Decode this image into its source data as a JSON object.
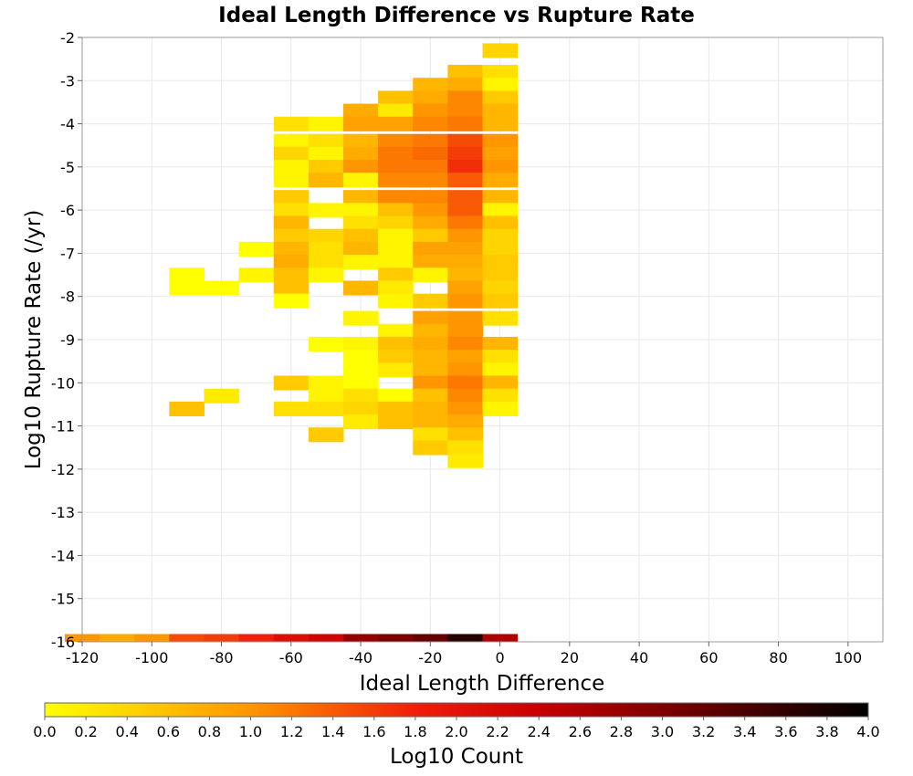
{
  "chart_data": {
    "type": "heatmap",
    "title": "Ideal Length Difference vs Rupture Rate",
    "xlabel": "Ideal Length Difference",
    "ylabel": "Log10 Rupture Rate (/yr)",
    "xlim": [
      -120,
      110
    ],
    "ylim": [
      -16,
      -2
    ],
    "x_ticks": [
      -120,
      -100,
      -80,
      -60,
      -40,
      -20,
      0,
      20,
      40,
      60,
      80,
      100
    ],
    "y_ticks": [
      -2,
      -3,
      -4,
      -5,
      -6,
      -7,
      -8,
      -9,
      -10,
      -11,
      -12,
      -13,
      -14,
      -15,
      -16
    ],
    "grid": true,
    "x_bin_width": 10,
    "y_bin_height": 0.33,
    "colorbar": {
      "label": "Log10 Count",
      "min": 0.0,
      "max": 4.0,
      "ticks": [
        "0.0",
        "0.2",
        "0.4",
        "0.6",
        "0.8",
        "1.0",
        "1.2",
        "1.4",
        "1.6",
        "1.8",
        "2.0",
        "2.2",
        "2.4",
        "2.6",
        "2.8",
        "3.0",
        "3.2",
        "3.4",
        "3.6",
        "3.8",
        "4.0"
      ]
    },
    "columns": [
      {
        "x": -90,
        "cells": [
          [
            -7.5,
            0.0
          ],
          [
            -7.8,
            0.0
          ],
          [
            -10.6,
            0.6
          ]
        ]
      },
      {
        "x": -80,
        "cells": [
          [
            -7.8,
            0.0
          ],
          [
            -10.3,
            0.2
          ]
        ]
      },
      {
        "x": -70,
        "cells": [
          [
            -6.9,
            0.0
          ],
          [
            -7.5,
            0.1
          ]
        ]
      },
      {
        "x": -60,
        "cells": [
          [
            -4.0,
            0.3
          ],
          [
            -4.4,
            0.1
          ],
          [
            -4.7,
            0.4
          ],
          [
            -5.0,
            0.1
          ],
          [
            -5.3,
            0.1
          ],
          [
            -5.7,
            0.5
          ],
          [
            -6.0,
            0.3
          ],
          [
            -6.3,
            0.7
          ],
          [
            -6.6,
            0.5
          ],
          [
            -6.9,
            0.7
          ],
          [
            -7.2,
            0.8
          ],
          [
            -7.5,
            0.6
          ],
          [
            -7.8,
            0.6
          ],
          [
            -8.1,
            0.0
          ],
          [
            -10.0,
            0.5
          ],
          [
            -10.6,
            0.3
          ]
        ]
      },
      {
        "x": -50,
        "cells": [
          [
            -4.0,
            0.1
          ],
          [
            -4.4,
            0.3
          ],
          [
            -4.7,
            0.1
          ],
          [
            -5.0,
            0.5
          ],
          [
            -5.3,
            0.7
          ],
          [
            -6.0,
            0.1
          ],
          [
            -6.6,
            0.4
          ],
          [
            -6.9,
            0.3
          ],
          [
            -7.2,
            0.3
          ],
          [
            -7.5,
            0.1
          ],
          [
            -9.1,
            0.0
          ],
          [
            -10.0,
            0.1
          ],
          [
            -10.3,
            0.1
          ],
          [
            -10.6,
            0.3
          ],
          [
            -11.2,
            0.5
          ]
        ]
      },
      {
        "x": -40,
        "cells": [
          [
            -3.7,
            0.8
          ],
          [
            -4.0,
            0.9
          ],
          [
            -4.4,
            0.7
          ],
          [
            -4.7,
            0.8
          ],
          [
            -5.0,
            1.0
          ],
          [
            -5.3,
            0.1
          ],
          [
            -5.7,
            0.7
          ],
          [
            -6.0,
            0.1
          ],
          [
            -6.3,
            0.3
          ],
          [
            -6.6,
            0.6
          ],
          [
            -6.9,
            0.7
          ],
          [
            -7.2,
            0.1
          ],
          [
            -7.8,
            0.7
          ],
          [
            -8.5,
            0.1
          ],
          [
            -9.1,
            0.1
          ],
          [
            -9.4,
            0.0
          ],
          [
            -9.7,
            0.0
          ],
          [
            -10.0,
            0.0
          ],
          [
            -10.3,
            0.3
          ],
          [
            -10.6,
            0.4
          ],
          [
            -10.9,
            0.2
          ]
        ]
      },
      {
        "x": -30,
        "cells": [
          [
            -3.4,
            0.6
          ],
          [
            -3.7,
            0.2
          ],
          [
            -4.0,
            0.9
          ],
          [
            -4.4,
            1.1
          ],
          [
            -4.7,
            1.2
          ],
          [
            -5.0,
            1.2
          ],
          [
            -5.3,
            1.1
          ],
          [
            -5.7,
            1.1
          ],
          [
            -6.0,
            0.6
          ],
          [
            -6.3,
            0.4
          ],
          [
            -6.6,
            0.1
          ],
          [
            -6.9,
            0.1
          ],
          [
            -7.2,
            0.1
          ],
          [
            -7.5,
            0.5
          ],
          [
            -7.8,
            0.2
          ],
          [
            -8.1,
            0.1
          ],
          [
            -8.8,
            0.1
          ],
          [
            -9.1,
            0.6
          ],
          [
            -9.4,
            0.5
          ],
          [
            -9.7,
            0.2
          ],
          [
            -10.3,
            0.0
          ],
          [
            -10.6,
            0.6
          ],
          [
            -10.9,
            0.6
          ]
        ]
      },
      {
        "x": -20,
        "cells": [
          [
            -3.1,
            0.7
          ],
          [
            -3.4,
            0.8
          ],
          [
            -3.7,
            1.0
          ],
          [
            -4.0,
            1.1
          ],
          [
            -4.4,
            1.2
          ],
          [
            -4.7,
            1.3
          ],
          [
            -5.0,
            1.2
          ],
          [
            -5.3,
            1.1
          ],
          [
            -5.7,
            1.1
          ],
          [
            -6.0,
            1.0
          ],
          [
            -6.3,
            0.8
          ],
          [
            -6.6,
            0.5
          ],
          [
            -6.9,
            0.9
          ],
          [
            -7.2,
            0.8
          ],
          [
            -7.5,
            0.1
          ],
          [
            -8.1,
            0.5
          ],
          [
            -8.5,
            0.9
          ],
          [
            -8.8,
            0.7
          ],
          [
            -9.1,
            0.8
          ],
          [
            -9.4,
            0.7
          ],
          [
            -9.7,
            0.7
          ],
          [
            -10.0,
            1.0
          ],
          [
            -10.3,
            0.6
          ],
          [
            -10.6,
            0.7
          ],
          [
            -10.9,
            0.7
          ],
          [
            -11.2,
            0.3
          ],
          [
            -11.5,
            0.5
          ]
        ]
      },
      {
        "x": -10,
        "cells": [
          [
            -2.8,
            0.6
          ],
          [
            -3.1,
            0.8
          ],
          [
            -3.4,
            1.1
          ],
          [
            -3.7,
            1.1
          ],
          [
            -4.0,
            1.2
          ],
          [
            -4.4,
            1.5
          ],
          [
            -4.7,
            1.6
          ],
          [
            -5.0,
            1.7
          ],
          [
            -5.3,
            1.4
          ],
          [
            -5.7,
            1.4
          ],
          [
            -6.0,
            1.4
          ],
          [
            -6.3,
            1.2
          ],
          [
            -6.6,
            1.0
          ],
          [
            -6.9,
            0.9
          ],
          [
            -7.2,
            0.8
          ],
          [
            -7.5,
            0.7
          ],
          [
            -7.8,
            0.9
          ],
          [
            -8.1,
            1.0
          ],
          [
            -8.5,
            1.0
          ],
          [
            -8.8,
            1.0
          ],
          [
            -9.1,
            1.1
          ],
          [
            -9.4,
            0.9
          ],
          [
            -9.7,
            1.0
          ],
          [
            -10.0,
            1.2
          ],
          [
            -10.3,
            1.1
          ],
          [
            -10.6,
            1.0
          ],
          [
            -10.9,
            0.8
          ],
          [
            -11.2,
            0.6
          ],
          [
            -11.5,
            0.3
          ],
          [
            -11.8,
            0.2
          ]
        ]
      },
      {
        "x": 0,
        "cells": [
          [
            -2.3,
            0.4
          ],
          [
            -2.8,
            0.3
          ],
          [
            -3.1,
            0.1
          ],
          [
            -3.4,
            0.5
          ],
          [
            -3.7,
            0.7
          ],
          [
            -4.0,
            0.7
          ],
          [
            -4.4,
            1.0
          ],
          [
            -4.7,
            0.9
          ],
          [
            -5.0,
            1.0
          ],
          [
            -5.3,
            0.8
          ],
          [
            -5.7,
            0.7
          ],
          [
            -6.0,
            0.1
          ],
          [
            -6.3,
            0.6
          ],
          [
            -6.6,
            0.4
          ],
          [
            -6.9,
            0.4
          ],
          [
            -7.2,
            0.5
          ],
          [
            -7.5,
            0.5
          ],
          [
            -7.8,
            0.4
          ],
          [
            -8.1,
            0.5
          ],
          [
            -8.5,
            0.3
          ],
          [
            -9.1,
            0.7
          ],
          [
            -9.4,
            0.3
          ],
          [
            -9.7,
            0.1
          ],
          [
            -10.0,
            0.7
          ],
          [
            -10.3,
            0.3
          ],
          [
            -10.6,
            0.1
          ]
        ]
      }
    ],
    "bottom_row": {
      "y": -16,
      "cells": [
        [
          -120,
          1.0
        ],
        [
          -110,
          0.8
        ],
        [
          -100,
          1.0
        ],
        [
          -90,
          1.5
        ],
        [
          -80,
          1.6
        ],
        [
          -70,
          1.8
        ],
        [
          -60,
          2.1
        ],
        [
          -50,
          2.3
        ],
        [
          -40,
          2.8
        ],
        [
          -30,
          3.0
        ],
        [
          -20,
          3.2
        ],
        [
          -10,
          3.7
        ],
        [
          0,
          2.6
        ]
      ]
    }
  }
}
